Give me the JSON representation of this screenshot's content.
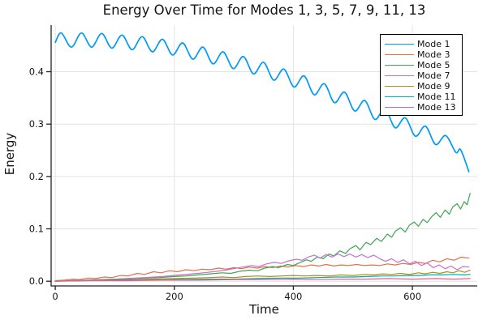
{
  "chart_data": {
    "type": "line",
    "title": "Energy Over Time for Modes 1, 3, 5, 7, 9, 11, 13",
    "xlabel": "Time",
    "ylabel": "Energy",
    "xlim": [
      -7,
      709
    ],
    "ylim": [
      -0.009,
      0.489
    ],
    "grid": true,
    "background": "#ffffff",
    "gridline_color": "#e3e3e3",
    "axis_color": "#222222",
    "legend": {
      "position": "top-right",
      "border_color": "#000000",
      "background": "#ffffff"
    },
    "xticks": {
      "values": [
        0,
        200,
        400,
        600
      ],
      "labels": [
        "0",
        "200",
        "400",
        "600"
      ]
    },
    "yticks": {
      "values": [
        0.0,
        0.1,
        0.2,
        0.3,
        0.4
      ],
      "labels": [
        "0.0",
        "0.1",
        "0.2",
        "0.3",
        "0.4"
      ]
    },
    "series": [
      {
        "name": "Mode 1",
        "color": "#009AFA",
        "smooth": true,
        "points": [
          [
            0,
            0.456
          ],
          [
            10,
            0.474
          ],
          [
            27,
            0.447
          ],
          [
            44,
            0.474
          ],
          [
            61,
            0.447
          ],
          [
            78,
            0.473
          ],
          [
            95,
            0.445
          ],
          [
            112,
            0.47
          ],
          [
            129,
            0.442
          ],
          [
            146,
            0.467
          ],
          [
            163,
            0.438
          ],
          [
            180,
            0.462
          ],
          [
            197,
            0.432
          ],
          [
            214,
            0.455
          ],
          [
            231,
            0.424
          ],
          [
            248,
            0.447
          ],
          [
            265,
            0.415
          ],
          [
            282,
            0.438
          ],
          [
            299,
            0.406
          ],
          [
            316,
            0.429
          ],
          [
            333,
            0.396
          ],
          [
            350,
            0.418
          ],
          [
            367,
            0.384
          ],
          [
            384,
            0.405
          ],
          [
            401,
            0.371
          ],
          [
            418,
            0.392
          ],
          [
            435,
            0.356
          ],
          [
            452,
            0.377
          ],
          [
            469,
            0.341
          ],
          [
            486,
            0.361
          ],
          [
            503,
            0.325
          ],
          [
            520,
            0.345
          ],
          [
            537,
            0.309
          ],
          [
            554,
            0.329
          ],
          [
            571,
            0.293
          ],
          [
            588,
            0.312
          ],
          [
            605,
            0.277
          ],
          [
            622,
            0.296
          ],
          [
            639,
            0.261
          ],
          [
            656,
            0.278
          ],
          [
            673,
            0.246
          ],
          [
            681,
            0.251
          ],
          [
            695,
            0.209
          ]
        ]
      },
      {
        "name": "Mode 3",
        "color": "#E36F47",
        "smooth": false,
        "points": [
          [
            0,
            0.001
          ],
          [
            15,
            0.002
          ],
          [
            30,
            0.004
          ],
          [
            40,
            0.003
          ],
          [
            55,
            0.006
          ],
          [
            68,
            0.005
          ],
          [
            82,
            0.008
          ],
          [
            95,
            0.007
          ],
          [
            110,
            0.011
          ],
          [
            122,
            0.01
          ],
          [
            138,
            0.015
          ],
          [
            150,
            0.013
          ],
          [
            165,
            0.018
          ],
          [
            178,
            0.016
          ],
          [
            192,
            0.02
          ],
          [
            205,
            0.018
          ],
          [
            220,
            0.022
          ],
          [
            233,
            0.02
          ],
          [
            247,
            0.023
          ],
          [
            260,
            0.022
          ],
          [
            274,
            0.025
          ],
          [
            287,
            0.023
          ],
          [
            300,
            0.026
          ],
          [
            313,
            0.024
          ],
          [
            326,
            0.027
          ],
          [
            339,
            0.025
          ],
          [
            352,
            0.028
          ],
          [
            365,
            0.026
          ],
          [
            378,
            0.029
          ],
          [
            391,
            0.027
          ],
          [
            404,
            0.03
          ],
          [
            417,
            0.028
          ],
          [
            430,
            0.031
          ],
          [
            443,
            0.029
          ],
          [
            455,
            0.032
          ],
          [
            468,
            0.029
          ],
          [
            480,
            0.031
          ],
          [
            493,
            0.03
          ],
          [
            506,
            0.032
          ],
          [
            519,
            0.03
          ],
          [
            532,
            0.031
          ],
          [
            545,
            0.03
          ],
          [
            558,
            0.033
          ],
          [
            571,
            0.031
          ],
          [
            584,
            0.034
          ],
          [
            597,
            0.032
          ],
          [
            610,
            0.036
          ],
          [
            622,
            0.034
          ],
          [
            634,
            0.04
          ],
          [
            646,
            0.037
          ],
          [
            658,
            0.043
          ],
          [
            670,
            0.04
          ],
          [
            682,
            0.046
          ],
          [
            695,
            0.044
          ]
        ]
      },
      {
        "name": "Mode 5",
        "color": "#3EA44E",
        "smooth": false,
        "points": [
          [
            0,
            0.0
          ],
          [
            25,
            0.001
          ],
          [
            50,
            0.002
          ],
          [
            75,
            0.003
          ],
          [
            100,
            0.004
          ],
          [
            125,
            0.005
          ],
          [
            150,
            0.006
          ],
          [
            175,
            0.007
          ],
          [
            200,
            0.009
          ],
          [
            220,
            0.01
          ],
          [
            240,
            0.012
          ],
          [
            260,
            0.014
          ],
          [
            280,
            0.016
          ],
          [
            295,
            0.015
          ],
          [
            310,
            0.019
          ],
          [
            325,
            0.021
          ],
          [
            340,
            0.02
          ],
          [
            352,
            0.025
          ],
          [
            365,
            0.028
          ],
          [
            375,
            0.026
          ],
          [
            390,
            0.032
          ],
          [
            400,
            0.03
          ],
          [
            412,
            0.036
          ],
          [
            422,
            0.041
          ],
          [
            430,
            0.038
          ],
          [
            440,
            0.046
          ],
          [
            450,
            0.043
          ],
          [
            460,
            0.052
          ],
          [
            468,
            0.048
          ],
          [
            478,
            0.058
          ],
          [
            488,
            0.053
          ],
          [
            495,
            0.062
          ],
          [
            505,
            0.068
          ],
          [
            512,
            0.06
          ],
          [
            522,
            0.074
          ],
          [
            530,
            0.07
          ],
          [
            540,
            0.082
          ],
          [
            548,
            0.076
          ],
          [
            558,
            0.09
          ],
          [
            565,
            0.084
          ],
          [
            572,
            0.096
          ],
          [
            580,
            0.102
          ],
          [
            588,
            0.094
          ],
          [
            595,
            0.107
          ],
          [
            603,
            0.113
          ],
          [
            610,
            0.105
          ],
          [
            618,
            0.118
          ],
          [
            625,
            0.112
          ],
          [
            633,
            0.124
          ],
          [
            640,
            0.131
          ],
          [
            647,
            0.122
          ],
          [
            655,
            0.136
          ],
          [
            662,
            0.128
          ],
          [
            668,
            0.142
          ],
          [
            675,
            0.148
          ],
          [
            681,
            0.138
          ],
          [
            687,
            0.152
          ],
          [
            692,
            0.146
          ],
          [
            697,
            0.168
          ]
        ]
      },
      {
        "name": "Mode 7",
        "color": "#C371D2",
        "smooth": false,
        "points": [
          [
            0,
            0.0
          ],
          [
            30,
            0.001
          ],
          [
            60,
            0.002
          ],
          [
            90,
            0.003
          ],
          [
            120,
            0.005
          ],
          [
            150,
            0.007
          ],
          [
            180,
            0.009
          ],
          [
            210,
            0.012
          ],
          [
            240,
            0.015
          ],
          [
            265,
            0.018
          ],
          [
            285,
            0.021
          ],
          [
            300,
            0.024
          ],
          [
            315,
            0.027
          ],
          [
            330,
            0.03
          ],
          [
            342,
            0.028
          ],
          [
            355,
            0.033
          ],
          [
            368,
            0.036
          ],
          [
            380,
            0.034
          ],
          [
            392,
            0.039
          ],
          [
            405,
            0.042
          ],
          [
            415,
            0.04
          ],
          [
            425,
            0.046
          ],
          [
            435,
            0.05
          ],
          [
            445,
            0.044
          ],
          [
            455,
            0.051
          ],
          [
            465,
            0.046
          ],
          [
            475,
            0.052
          ],
          [
            485,
            0.047
          ],
          [
            495,
            0.052
          ],
          [
            505,
            0.046
          ],
          [
            515,
            0.051
          ],
          [
            525,
            0.045
          ],
          [
            535,
            0.05
          ],
          [
            545,
            0.043
          ],
          [
            555,
            0.038
          ],
          [
            565,
            0.043
          ],
          [
            575,
            0.036
          ],
          [
            585,
            0.041
          ],
          [
            595,
            0.033
          ],
          [
            605,
            0.038
          ],
          [
            615,
            0.03
          ],
          [
            625,
            0.035
          ],
          [
            635,
            0.026
          ],
          [
            645,
            0.031
          ],
          [
            655,
            0.024
          ],
          [
            665,
            0.029
          ],
          [
            675,
            0.022
          ],
          [
            685,
            0.028
          ],
          [
            695,
            0.027
          ]
        ]
      },
      {
        "name": "Mode 9",
        "color": "#AC8E18",
        "smooth": false,
        "points": [
          [
            0,
            0.0
          ],
          [
            40,
            0.001
          ],
          [
            80,
            0.002
          ],
          [
            120,
            0.003
          ],
          [
            160,
            0.004
          ],
          [
            200,
            0.005
          ],
          [
            230,
            0.006
          ],
          [
            260,
            0.007
          ],
          [
            280,
            0.008
          ],
          [
            300,
            0.007
          ],
          [
            320,
            0.009
          ],
          [
            340,
            0.01
          ],
          [
            360,
            0.009
          ],
          [
            380,
            0.01
          ],
          [
            400,
            0.011
          ],
          [
            420,
            0.01
          ],
          [
            440,
            0.011
          ],
          [
            460,
            0.01
          ],
          [
            480,
            0.012
          ],
          [
            500,
            0.011
          ],
          [
            520,
            0.013
          ],
          [
            535,
            0.012
          ],
          [
            550,
            0.014
          ],
          [
            565,
            0.013
          ],
          [
            580,
            0.015
          ],
          [
            595,
            0.013
          ],
          [
            610,
            0.016
          ],
          [
            622,
            0.014
          ],
          [
            634,
            0.017
          ],
          [
            646,
            0.015
          ],
          [
            658,
            0.018
          ],
          [
            668,
            0.016
          ],
          [
            678,
            0.02
          ],
          [
            688,
            0.017
          ],
          [
            697,
            0.021
          ]
        ]
      },
      {
        "name": "Mode 11",
        "color": "#00AAAE",
        "smooth": false,
        "points": [
          [
            0,
            0.0
          ],
          [
            50,
            0.001
          ],
          [
            100,
            0.002
          ],
          [
            150,
            0.002
          ],
          [
            200,
            0.003
          ],
          [
            250,
            0.004
          ],
          [
            300,
            0.004
          ],
          [
            340,
            0.005
          ],
          [
            380,
            0.006
          ],
          [
            410,
            0.006
          ],
          [
            440,
            0.007
          ],
          [
            470,
            0.008
          ],
          [
            500,
            0.008
          ],
          [
            525,
            0.009
          ],
          [
            550,
            0.01
          ],
          [
            570,
            0.01
          ],
          [
            590,
            0.011
          ],
          [
            610,
            0.011
          ],
          [
            630,
            0.012
          ],
          [
            650,
            0.012
          ],
          [
            670,
            0.013
          ],
          [
            685,
            0.012
          ],
          [
            697,
            0.013
          ]
        ]
      },
      {
        "name": "Mode 13",
        "color": "#EE5E93",
        "smooth": false,
        "points": [
          [
            0,
            0.0
          ],
          [
            60,
            0.001
          ],
          [
            120,
            0.001
          ],
          [
            180,
            0.002
          ],
          [
            240,
            0.002
          ],
          [
            300,
            0.003
          ],
          [
            350,
            0.003
          ],
          [
            400,
            0.004
          ],
          [
            440,
            0.003
          ],
          [
            480,
            0.004
          ],
          [
            520,
            0.004
          ],
          [
            560,
            0.005
          ],
          [
            600,
            0.004
          ],
          [
            640,
            0.005
          ],
          [
            670,
            0.004
          ],
          [
            697,
            0.005
          ]
        ]
      }
    ]
  }
}
